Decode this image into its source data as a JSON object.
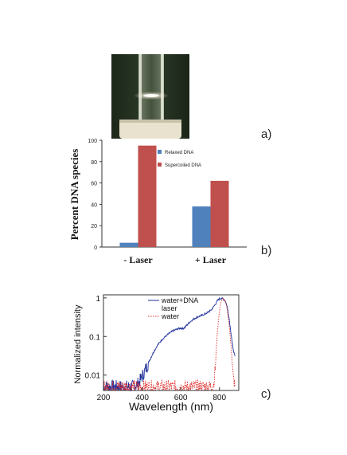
{
  "panel_labels": {
    "a": "a)",
    "b": "b)",
    "c": "c)"
  },
  "colors": {
    "blue": "#4f81bd",
    "red": "#c0504d",
    "spectrum_dna": "#1f2f9a",
    "spectrum_water": "#e03030",
    "photo_bg": "#243222",
    "photo_base": "#e8e2cf"
  },
  "chart_data": [
    {
      "type": "bar",
      "categories": [
        "- Laser",
        "+ Laser"
      ],
      "series": [
        {
          "name": "Relaxed DNA",
          "values": [
            4,
            38
          ],
          "color": "#4f81bd"
        },
        {
          "name": "Supercoiled DNA",
          "values": [
            95,
            62
          ],
          "color": "#c0504d"
        }
      ],
      "ylabel": "Percent DNA species",
      "ylim": [
        0,
        100
      ],
      "yticks": [
        "0",
        "20",
        "40",
        "60",
        "80",
        "100"
      ],
      "ytick_values": [
        0,
        20,
        40,
        60,
        80,
        100
      ],
      "grid": false,
      "legend_position": "top-right"
    },
    {
      "type": "line",
      "xlabel": "Wavelength (nm)",
      "ylabel": "Normalized intensity",
      "xlim": [
        200,
        900
      ],
      "ylim": [
        0.004,
        1.2
      ],
      "yscale": "log",
      "xticks": [
        "200",
        "400",
        "600",
        "800"
      ],
      "xtick_values": [
        200,
        400,
        600,
        800
      ],
      "yticks": [
        "0.01",
        "0.1",
        "1"
      ],
      "ytick_values": [
        0.01,
        0.1,
        1
      ],
      "legend": [
        "water+DNA",
        "laser",
        "water"
      ],
      "legend_position": "top-right",
      "series": [
        {
          "name": "water+DNA",
          "style": "solid",
          "color": "#1f2f9a",
          "x": [
            200,
            250,
            300,
            350,
            370,
            380,
            400,
            420,
            440,
            460,
            480,
            500,
            520,
            540,
            560,
            580,
            600,
            610,
            620,
            640,
            660,
            680,
            700,
            720,
            740,
            760,
            780,
            790,
            800,
            810,
            820,
            830,
            840,
            850,
            860,
            870,
            880
          ],
          "y": [
            0.005,
            0.005,
            0.005,
            0.005,
            0.0055,
            0.006,
            0.009,
            0.015,
            0.025,
            0.04,
            0.06,
            0.08,
            0.1,
            0.12,
            0.14,
            0.155,
            0.165,
            0.16,
            0.17,
            0.22,
            0.27,
            0.31,
            0.34,
            0.37,
            0.42,
            0.5,
            0.7,
            0.85,
            0.95,
            0.98,
            0.93,
            0.85,
            0.6,
            0.3,
            0.12,
            0.05,
            0.03
          ]
        },
        {
          "name": "water",
          "style": "dotted",
          "color": "#e03030",
          "x": [
            200,
            250,
            300,
            350,
            400,
            450,
            500,
            550,
            600,
            650,
            700,
            740,
            760,
            770,
            775,
            780,
            785,
            790,
            800,
            810,
            820,
            830,
            840,
            850,
            860,
            870,
            880
          ],
          "y": [
            0.005,
            0.005,
            0.005,
            0.005,
            0.005,
            0.005,
            0.005,
            0.005,
            0.005,
            0.005,
            0.005,
            0.005,
            0.005,
            0.006,
            0.01,
            0.02,
            0.06,
            0.15,
            0.45,
            0.85,
            0.95,
            0.8,
            0.5,
            0.2,
            0.06,
            0.01,
            0.005
          ]
        }
      ]
    }
  ]
}
